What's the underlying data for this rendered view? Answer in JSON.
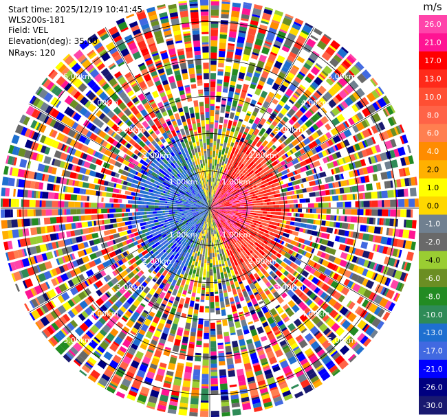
{
  "chart_data": {
    "type": "heatmap",
    "subtype": "radar-ppi",
    "header": {
      "start_time": "Start time: 2025/12/19 10:41:45",
      "instrument": "WLS200s-181",
      "field": "Field: VEL",
      "elevation": "Elevation(deg): 35.00",
      "nrays": "NRays: 120"
    },
    "n_rays": 120,
    "max_range_km": 5.6,
    "range_rings_km": [
      1,
      2,
      3,
      4,
      5
    ],
    "range_labels": [
      "1.00km",
      "2.00km",
      "3.00km",
      "4.00km",
      "5.00km"
    ],
    "grid": true,
    "colorbar": {
      "unit": "m/s",
      "placement": "right",
      "ticks": [
        "26.0",
        "21.0",
        "17.0",
        "13.0",
        "10.0",
        "8.0",
        "6.0",
        "4.0",
        "2.0",
        "1.0",
        "0.0",
        "-1.0",
        "-2.0",
        "-4.0",
        "-6.0",
        "-8.0",
        "-10.0",
        "-13.0",
        "-17.0",
        "-21.0",
        "-26.0",
        "-30.0"
      ],
      "colors": [
        "#ff44aa",
        "#ff1493",
        "#ff0000",
        "#ff2a1a",
        "#ff4f33",
        "#ff6347",
        "#ff7f50",
        "#ff8c00",
        "#ffb000",
        "#ffff00",
        "#ffd700",
        "#708090",
        "#696969",
        "#9acd32",
        "#6b8e23",
        "#228b22",
        "#2e8b57",
        "#1e6fd0",
        "#4169e1",
        "#0000ff",
        "#000080",
        "#191970"
      ]
    },
    "velocity_pattern": {
      "inner_region_km": 1.9,
      "positive_sector_center_deg": 90,
      "negative_sector_center_deg": 270,
      "noise_beyond_km": 2.2
    }
  }
}
